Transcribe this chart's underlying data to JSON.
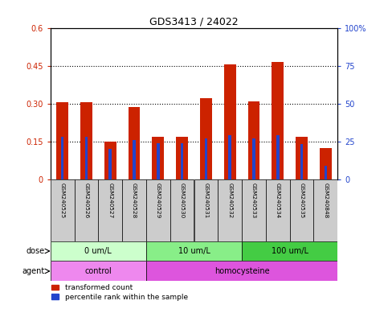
{
  "title": "GDS3413 / 24022",
  "samples": [
    "GSM240525",
    "GSM240526",
    "GSM240527",
    "GSM240528",
    "GSM240529",
    "GSM240530",
    "GSM240531",
    "GSM240532",
    "GSM240533",
    "GSM240534",
    "GSM240535",
    "GSM240848"
  ],
  "transformed_count": [
    0.305,
    0.305,
    0.148,
    0.285,
    0.168,
    0.168,
    0.32,
    0.455,
    0.31,
    0.465,
    0.168,
    0.125
  ],
  "percentile_rank_pct": [
    28,
    28,
    20,
    26,
    24,
    24,
    27,
    29,
    27,
    29,
    23,
    9
  ],
  "ylim_left": [
    0,
    0.6
  ],
  "ylim_right": [
    0,
    100
  ],
  "yticks_left": [
    0,
    0.15,
    0.3,
    0.45,
    0.6
  ],
  "yticks_right": [
    0,
    25,
    50,
    75,
    100
  ],
  "ytick_labels_left": [
    "0",
    "0.15",
    "0.30",
    "0.45",
    "0.6"
  ],
  "ytick_labels_right": [
    "0",
    "25",
    "50",
    "75",
    "100%"
  ],
  "bar_color_red": "#cc2200",
  "bar_color_blue": "#2244cc",
  "dose_groups": [
    {
      "label": "0 um/L",
      "start": 0,
      "end": 4,
      "color": "#ccffcc"
    },
    {
      "label": "10 um/L",
      "start": 4,
      "end": 8,
      "color": "#88ee88"
    },
    {
      "label": "100 um/L",
      "start": 8,
      "end": 12,
      "color": "#44cc44"
    }
  ],
  "agent_groups": [
    {
      "label": "control",
      "start": 0,
      "end": 4,
      "color": "#ee88ee"
    },
    {
      "label": "homocysteine",
      "start": 4,
      "end": 12,
      "color": "#dd55dd"
    }
  ],
  "bar_width": 0.5,
  "blue_bar_width": 0.12,
  "left_color": "#cc2200",
  "right_color": "#2244cc",
  "sample_bg_color": "#cccccc",
  "grid_yticks": [
    0.15,
    0.3,
    0.45
  ]
}
